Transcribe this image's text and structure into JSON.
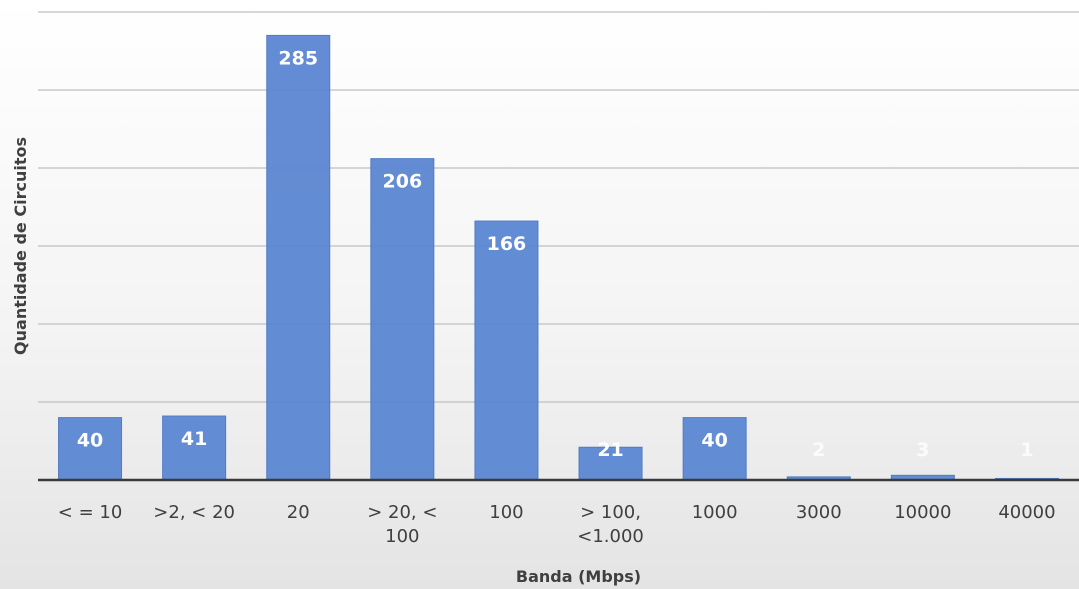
{
  "chart_data": {
    "type": "bar",
    "title": "",
    "xlabel": "Banda (Mbps)",
    "ylabel": "Quantidade de Circuitos",
    "categories": [
      [
        "< = 10"
      ],
      [
        ">2, < 20"
      ],
      [
        "20"
      ],
      [
        "> 20, <",
        "100"
      ],
      [
        "100"
      ],
      [
        "> 100,",
        "<1.000"
      ],
      [
        "1000"
      ],
      [
        "3000"
      ],
      [
        "10000"
      ],
      [
        "40000"
      ]
    ],
    "values": [
      40,
      41,
      285,
      206,
      166,
      21,
      40,
      2,
      3,
      1
    ],
    "ylim": [
      0,
      300
    ],
    "y_gridlines": [
      0,
      50,
      100,
      150,
      200,
      250,
      300
    ],
    "y_tick_labels_shown": false,
    "grid": true,
    "bar_color": "#5b87d2",
    "label_color": "#ffffff"
  }
}
